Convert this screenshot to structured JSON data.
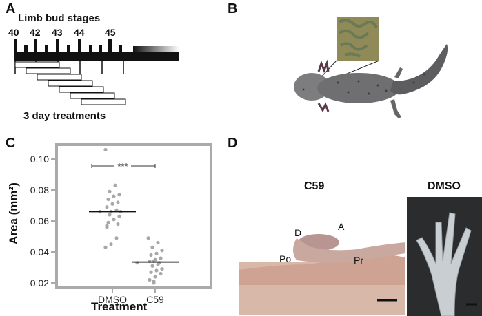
{
  "panels": {
    "a": {
      "letter": "A",
      "title": "Limb bud stages",
      "stages": [
        "40",
        "42",
        "43",
        "44",
        "45"
      ],
      "caption": "3 day treatments"
    },
    "b": {
      "letter": "B"
    },
    "c": {
      "letter": "C"
    },
    "d": {
      "letter": "D",
      "c59_title": "C59",
      "dmso_title": "DMSO",
      "axis_labels": {
        "d": "D",
        "a": "A",
        "po": "Po",
        "pr": "Pr"
      }
    }
  },
  "chart_data": {
    "type": "scatter",
    "title": "",
    "xlabel": "Treatment",
    "ylabel": "Area (mm²)",
    "categories": [
      "DMSO",
      "C59"
    ],
    "ylim": [
      0.02,
      0.11
    ],
    "yticks": [
      0.02,
      0.04,
      0.06,
      0.08,
      0.1
    ],
    "ytick_labels": [
      "0.02",
      "0.04",
      "0.06",
      "0.08",
      "0.10"
    ],
    "grid": false,
    "significance": "***",
    "series": [
      {
        "category": "DMSO",
        "median": 0.066,
        "values": [
          0.106,
          0.083,
          0.079,
          0.077,
          0.076,
          0.074,
          0.072,
          0.071,
          0.069,
          0.067,
          0.066,
          0.066,
          0.066,
          0.064,
          0.063,
          0.061,
          0.059,
          0.058,
          0.057,
          0.056,
          0.049,
          0.045,
          0.043
        ]
      },
      {
        "category": "C59",
        "median": 0.0335,
        "values": [
          0.049,
          0.046,
          0.043,
          0.041,
          0.039,
          0.038,
          0.036,
          0.035,
          0.034,
          0.034,
          0.033,
          0.033,
          0.032,
          0.031,
          0.029,
          0.028,
          0.027,
          0.026,
          0.024,
          0.022,
          0.021,
          0.02
        ]
      }
    ]
  }
}
